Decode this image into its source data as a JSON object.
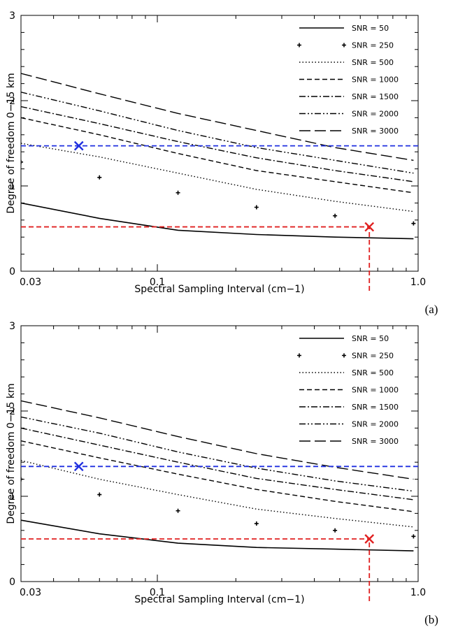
{
  "chart_data": [
    {
      "type": "line",
      "panel_label": "(a)",
      "xlabel": "Spectral Sampling Interval (cm−1)",
      "ylabel": "Degree of freedom 0−15 km",
      "x_scale": "log",
      "xlim": [
        0.03,
        1.0
      ],
      "ylim": [
        0,
        3
      ],
      "x_ticks": [
        0.03,
        0.1,
        1.0
      ],
      "x_tick_labels": [
        "0.03",
        "0.1",
        "1.0"
      ],
      "y_ticks": [
        0,
        1,
        2,
        3
      ],
      "y_tick_labels": [
        "0",
        "1",
        "2",
        "3"
      ],
      "grid": false,
      "legend_position": "top-right",
      "series": [
        {
          "name": "SNR = 50",
          "style": "solid",
          "x": [
            0.03,
            0.06,
            0.12,
            0.24,
            0.48,
            0.96
          ],
          "y": [
            0.8,
            0.62,
            0.48,
            0.43,
            0.4,
            0.38
          ]
        },
        {
          "name": "SNR = 250",
          "style": "plus",
          "x": [
            0.03,
            0.06,
            0.12,
            0.24,
            0.48,
            0.96
          ],
          "y": [
            1.28,
            1.1,
            0.92,
            0.75,
            0.65,
            0.56
          ]
        },
        {
          "name": "SNR = 500",
          "style": "dotted",
          "x": [
            0.03,
            0.06,
            0.12,
            0.24,
            0.48,
            0.96
          ],
          "y": [
            1.5,
            1.34,
            1.15,
            0.96,
            0.82,
            0.7
          ]
        },
        {
          "name": "SNR = 1000",
          "style": "short-dash",
          "x": [
            0.03,
            0.06,
            0.12,
            0.24,
            0.48,
            0.96
          ],
          "y": [
            1.8,
            1.6,
            1.38,
            1.18,
            1.05,
            0.92
          ]
        },
        {
          "name": "SNR = 1500",
          "style": "dash-dot",
          "x": [
            0.03,
            0.06,
            0.12,
            0.24,
            0.48,
            0.96
          ],
          "y": [
            1.93,
            1.73,
            1.52,
            1.33,
            1.18,
            1.05
          ]
        },
        {
          "name": "SNR = 2000",
          "style": "dash-dot-dot",
          "x": [
            0.03,
            0.06,
            0.12,
            0.24,
            0.48,
            0.96
          ],
          "y": [
            2.1,
            1.88,
            1.65,
            1.45,
            1.3,
            1.15
          ]
        },
        {
          "name": "SNR = 3000",
          "style": "long-dash",
          "x": [
            0.03,
            0.06,
            0.12,
            0.24,
            0.48,
            0.96
          ],
          "y": [
            2.32,
            2.08,
            1.85,
            1.65,
            1.45,
            1.3
          ]
        }
      ],
      "reference_lines": [
        {
          "orientation": "horizontal",
          "y": 1.47,
          "color": "#1f2fe0"
        },
        {
          "orientation": "horizontal",
          "y": 0.52,
          "x_end": 0.65,
          "color": "#e02020"
        },
        {
          "orientation": "vertical",
          "x": 0.65,
          "y_end": 0.52,
          "color": "#e02020"
        }
      ],
      "markers": [
        {
          "x": 0.05,
          "y": 1.47,
          "color": "#1f2fe0"
        },
        {
          "x": 0.65,
          "y": 0.52,
          "color": "#e02020"
        }
      ]
    },
    {
      "type": "line",
      "panel_label": "(b)",
      "xlabel": "Spectral Sampling Interval (cm−1)",
      "ylabel": "Degree of freedom 0−15 km",
      "x_scale": "log",
      "xlim": [
        0.03,
        1.0
      ],
      "ylim": [
        0,
        3
      ],
      "x_ticks": [
        0.03,
        0.1,
        1.0
      ],
      "x_tick_labels": [
        "0.03",
        "0.1",
        "1.0"
      ],
      "y_ticks": [
        0,
        1,
        2,
        3
      ],
      "y_tick_labels": [
        "0",
        "1",
        "2",
        "3"
      ],
      "grid": false,
      "legend_position": "top-right",
      "series": [
        {
          "name": "SNR = 50",
          "style": "solid",
          "x": [
            0.03,
            0.06,
            0.12,
            0.24,
            0.48,
            0.96
          ],
          "y": [
            0.72,
            0.56,
            0.45,
            0.4,
            0.38,
            0.36
          ]
        },
        {
          "name": "SNR = 250",
          "style": "plus",
          "x": [
            0.03,
            0.06,
            0.12,
            0.24,
            0.48,
            0.96
          ],
          "y": [
            1.2,
            1.02,
            0.83,
            0.68,
            0.6,
            0.53
          ]
        },
        {
          "name": "SNR = 500",
          "style": "dotted",
          "x": [
            0.03,
            0.06,
            0.12,
            0.24,
            0.48,
            0.96
          ],
          "y": [
            1.42,
            1.2,
            1.02,
            0.85,
            0.74,
            0.64
          ]
        },
        {
          "name": "SNR = 1000",
          "style": "short-dash",
          "x": [
            0.03,
            0.06,
            0.12,
            0.24,
            0.48,
            0.96
          ],
          "y": [
            1.65,
            1.45,
            1.26,
            1.08,
            0.94,
            0.82
          ]
        },
        {
          "name": "SNR = 1500",
          "style": "dash-dot",
          "x": [
            0.03,
            0.06,
            0.12,
            0.24,
            0.48,
            0.96
          ],
          "y": [
            1.8,
            1.6,
            1.4,
            1.21,
            1.08,
            0.96
          ]
        },
        {
          "name": "SNR = 2000",
          "style": "dash-dot-dot",
          "x": [
            0.03,
            0.06,
            0.12,
            0.24,
            0.48,
            0.96
          ],
          "y": [
            1.93,
            1.74,
            1.52,
            1.33,
            1.18,
            1.06
          ]
        },
        {
          "name": "SNR = 3000",
          "style": "long-dash",
          "x": [
            0.03,
            0.06,
            0.12,
            0.24,
            0.48,
            0.96
          ],
          "y": [
            2.12,
            1.92,
            1.7,
            1.5,
            1.34,
            1.2
          ]
        }
      ],
      "reference_lines": [
        {
          "orientation": "horizontal",
          "y": 1.35,
          "color": "#1f2fe0"
        },
        {
          "orientation": "horizontal",
          "y": 0.5,
          "x_end": 0.65,
          "color": "#e02020"
        },
        {
          "orientation": "vertical",
          "x": 0.65,
          "y_end": 0.5,
          "color": "#e02020"
        }
      ],
      "markers": [
        {
          "x": 0.05,
          "y": 1.35,
          "color": "#1f2fe0"
        },
        {
          "x": 0.65,
          "y": 0.5,
          "color": "#e02020"
        }
      ]
    }
  ]
}
